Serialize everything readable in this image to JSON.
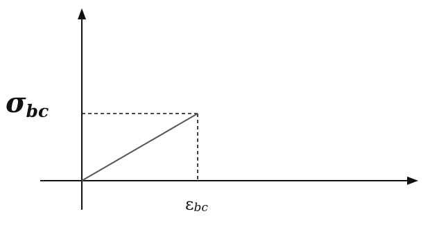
{
  "chart_data": {
    "type": "line",
    "title": "",
    "xlabel": "",
    "ylabel": "",
    "x_tick": {
      "symbol": "ε",
      "subscript": "bc"
    },
    "y_tick": {
      "symbol": "σ",
      "subscript": "bc"
    },
    "series": [
      {
        "x": [
          0,
          1
        ],
        "y": [
          0,
          1
        ]
      }
    ],
    "xlim": [
      0,
      3
    ],
    "ylim": [
      0,
      2.5
    ],
    "guide_lines": "dashed",
    "grid": false,
    "legend": "none"
  }
}
